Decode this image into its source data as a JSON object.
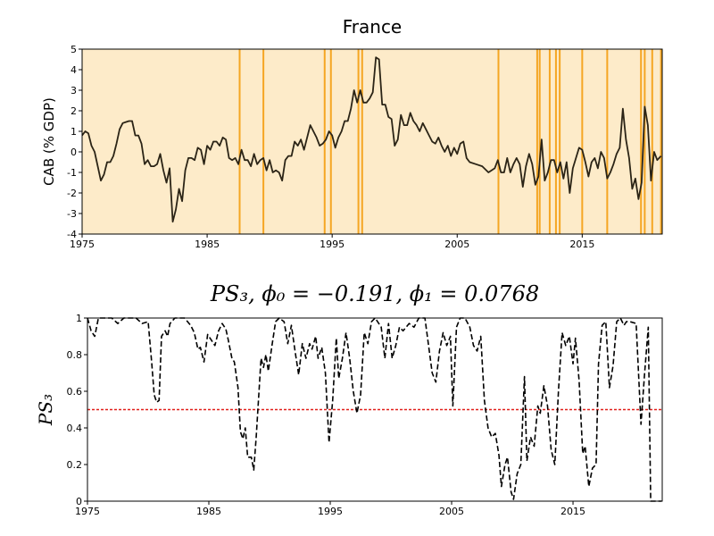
{
  "chart_data": [
    {
      "type": "line",
      "title": "France",
      "ylabel": "CAB (% GDP)",
      "xlim": [
        1975,
        2021.4
      ],
      "ylim": [
        -4,
        5
      ],
      "xticks": [
        1975,
        1985,
        1995,
        2005,
        2015
      ],
      "yticks": [
        -4,
        -3,
        -2,
        -1,
        0,
        1,
        2,
        3,
        4,
        5
      ],
      "background_color": "#fdebc9",
      "regime_color": "#f5a623",
      "regime_dates": [
        1987.6,
        1989.5,
        1994.4,
        1994.9,
        1997.1,
        1997.4,
        2008.3,
        2011.4,
        2011.6,
        2012.4,
        2012.9,
        2013.2,
        2015.0,
        2017.0,
        2019.7,
        2020.0,
        2020.6,
        2021.3
      ],
      "series": [
        {
          "color": "#2b2416",
          "x": [
            1975.0,
            1975.25,
            1975.5,
            1975.75,
            1976.0,
            1976.25,
            1976.5,
            1976.75,
            1977.0,
            1977.25,
            1977.5,
            1977.75,
            1978.0,
            1978.25,
            1978.5,
            1978.75,
            1979.0,
            1979.25,
            1979.5,
            1979.75,
            1980.0,
            1980.25,
            1980.5,
            1980.75,
            1981.0,
            1981.25,
            1981.5,
            1981.75,
            1982.0,
            1982.25,
            1982.5,
            1982.75,
            1983.0,
            1983.25,
            1983.5,
            1983.75,
            1984.0,
            1984.25,
            1984.5,
            1984.75,
            1985.0,
            1985.25,
            1985.5,
            1985.75,
            1986.0,
            1986.25,
            1986.5,
            1986.75,
            1987.0,
            1987.25,
            1987.5,
            1987.75,
            1988.0,
            1988.25,
            1988.5,
            1988.75,
            1989.0,
            1989.25,
            1989.5,
            1989.75,
            1990.0,
            1990.25,
            1990.5,
            1990.75,
            1991.0,
            1991.25,
            1991.5,
            1991.75,
            1992.0,
            1992.25,
            1992.5,
            1992.75,
            1993.0,
            1993.25,
            1993.5,
            1993.75,
            1994.0,
            1994.25,
            1994.5,
            1994.75,
            1995.0,
            1995.25,
            1995.5,
            1995.75,
            1996.0,
            1996.25,
            1996.5,
            1996.75,
            1997.0,
            1997.25,
            1997.5,
            1997.75,
            1998.0,
            1998.25,
            1998.5,
            1998.75,
            1999.0,
            1999.25,
            1999.5,
            1999.75,
            2000.0,
            2000.25,
            2000.5,
            2000.75,
            2001.0,
            2001.25,
            2001.5,
            2001.75,
            2002.0,
            2002.25,
            2002.5,
            2002.75,
            2003.0,
            2003.25,
            2003.5,
            2003.75,
            2004.0,
            2004.25,
            2004.5,
            2004.75,
            2005.0,
            2005.25,
            2005.5,
            2005.75,
            2006.0,
            2006.5,
            2007.0,
            2007.5,
            2008.0,
            2008.25,
            2008.5,
            2008.75,
            2009.0,
            2009.25,
            2009.5,
            2009.75,
            2010.0,
            2010.25,
            2010.5,
            2010.75,
            2011.0,
            2011.25,
            2011.5,
            2011.75,
            2012.0,
            2012.25,
            2012.5,
            2012.75,
            2013.0,
            2013.25,
            2013.5,
            2013.75,
            2014.0,
            2014.25,
            2014.5,
            2014.75,
            2015.0,
            2015.25,
            2015.5,
            2015.75,
            2016.0,
            2016.25,
            2016.5,
            2016.75,
            2017.0,
            2017.25,
            2017.5,
            2017.75,
            2018.0,
            2018.25,
            2018.5,
            2018.75,
            2019.0,
            2019.25,
            2019.5,
            2019.75,
            2020.0,
            2020.25,
            2020.5,
            2020.75,
            2021.0,
            2021.3
          ],
          "values": [
            0.8,
            1.0,
            0.9,
            0.3,
            0.0,
            -0.7,
            -1.4,
            -1.1,
            -0.5,
            -0.5,
            -0.2,
            0.4,
            1.1,
            1.4,
            1.45,
            1.5,
            1.5,
            0.8,
            0.8,
            0.4,
            -0.6,
            -0.4,
            -0.7,
            -0.7,
            -0.6,
            -0.1,
            -0.9,
            -1.5,
            -0.8,
            -3.4,
            -2.8,
            -1.8,
            -2.4,
            -0.9,
            -0.3,
            -0.3,
            -0.4,
            0.2,
            0.1,
            -0.6,
            0.3,
            0.1,
            0.5,
            0.5,
            0.3,
            0.7,
            0.6,
            -0.3,
            -0.4,
            -0.3,
            -0.6,
            0.1,
            -0.4,
            -0.4,
            -0.7,
            -0.1,
            -0.6,
            -0.4,
            -0.3,
            -0.9,
            -0.4,
            -1.0,
            -0.9,
            -1.0,
            -1.4,
            -0.4,
            -0.2,
            -0.2,
            0.5,
            0.3,
            0.6,
            0.1,
            0.7,
            1.3,
            1.0,
            0.7,
            0.3,
            0.4,
            0.6,
            1.0,
            0.8,
            0.2,
            0.7,
            1.0,
            1.5,
            1.5,
            2.1,
            3.0,
            2.4,
            3.0,
            2.4,
            2.4,
            2.6,
            2.9,
            4.6,
            4.5,
            2.3,
            2.3,
            1.7,
            1.6,
            0.3,
            0.6,
            1.8,
            1.3,
            1.3,
            1.9,
            1.5,
            1.3,
            1.0,
            1.4,
            1.1,
            0.8,
            0.5,
            0.4,
            0.7,
            0.3,
            0.0,
            0.3,
            -0.2,
            0.2,
            -0.1,
            0.4,
            0.5,
            -0.3,
            -0.5,
            -0.6,
            -0.7,
            -1.0,
            -0.8,
            -0.4,
            -1.0,
            -1.0,
            -0.3,
            -1.0,
            -0.6,
            -0.3,
            -0.6,
            -1.7,
            -0.7,
            -0.1,
            -0.6,
            -1.6,
            -1.2,
            0.6,
            -1.4,
            -1.0,
            -0.4,
            -0.4,
            -1.0,
            -0.5,
            -1.3,
            -0.5,
            -2.0,
            -0.8,
            -0.3,
            0.2,
            0.1,
            -0.5,
            -1.2,
            -0.5,
            -0.3,
            -0.8,
            0.0,
            -0.3,
            -1.3,
            -1.0,
            -0.6,
            -0.1,
            0.2,
            2.1,
            0.6,
            -0.3,
            -1.8,
            -1.3,
            -2.3,
            -1.5,
            2.2,
            1.3,
            -1.4,
            0.0,
            -0.4,
            -0.2
          ]
        }
      ]
    },
    {
      "type": "line",
      "title": "PS₃, ϕ₀ = −0.191, ϕ₁ = 0.0768",
      "ylabel": "PS₃",
      "xlim": [
        1975,
        2022.35
      ],
      "ylim": [
        0,
        1
      ],
      "xticks": [
        1975,
        1985,
        1995,
        2005,
        2015
      ],
      "yticks": [
        0,
        0.2,
        0.4,
        0.6,
        0.8,
        1
      ],
      "threshold": 0.5,
      "threshold_color": "#e0201b",
      "series": [
        {
          "color": "#000000",
          "x": [
            1975,
            1975.3,
            1975.6,
            1975.9,
            1977,
            1977.5,
            1978,
            1979,
            1979.5,
            1980,
            1980.3,
            1980.5,
            1980.7,
            1980.9,
            1981.1,
            1981.4,
            1981.6,
            1981.8,
            1982.2,
            1983,
            1983.5,
            1983.8,
            1984.1,
            1984.3,
            1984.6,
            1984.9,
            1985.2,
            1985.5,
            1985.8,
            1986.1,
            1986.4,
            1986.6,
            1986.9,
            1987.1,
            1987.4,
            1987.6,
            1987.8,
            1988,
            1988.2,
            1988.5,
            1988.7,
            1988.9,
            1989.3,
            1989.5,
            1989.7,
            1989.9,
            1990.2,
            1990.5,
            1990.8,
            1991.2,
            1991.5,
            1991.8,
            1992.1,
            1992.4,
            1992.7,
            1993,
            1993.3,
            1993.5,
            1993.8,
            1994,
            1994.3,
            1994.6,
            1994.9,
            1995.2,
            1995.5,
            1995.7,
            1996,
            1996.3,
            1996.6,
            1996.9,
            1997.2,
            1997.5,
            1997.8,
            1998.1,
            1998.4,
            1998.7,
            1999.2,
            1999.5,
            1999.8,
            2000.1,
            2000.4,
            2000.7,
            2001,
            2001.5,
            2001.9,
            2002.3,
            2002.8,
            2003.1,
            2003.4,
            2003.7,
            2004,
            2004.3,
            2004.6,
            2004.9,
            2005.1,
            2005.4,
            2005.7,
            2006.1,
            2006.5,
            2006.8,
            2007.1,
            2007.4,
            2007.7,
            2008,
            2008.3,
            2008.6,
            2008.9,
            2009.1,
            2009.4,
            2009.6,
            2009.9,
            2010.1,
            2010.4,
            2010.7,
            2011,
            2011.2,
            2011.5,
            2011.8,
            2012.1,
            2012.3,
            2012.6,
            2012.9,
            2013.2,
            2013.5,
            2013.8,
            2014.1,
            2014.4,
            2014.7,
            2015,
            2015.2,
            2015.5,
            2015.8,
            2016,
            2016.3,
            2016.6,
            2016.9,
            2017.1,
            2017.4,
            2017.7,
            2018,
            2018.3,
            2018.6,
            2018.9,
            2019.2,
            2019.4,
            2019.7,
            2020.2,
            2020.6,
            2020.9,
            2021.2,
            2021.4,
            2022.3
          ],
          "values": [
            1,
            0.93,
            0.9,
            1,
            1,
            0.97,
            1,
            1,
            0.97,
            0.98,
            0.75,
            0.58,
            0.54,
            0.55,
            0.9,
            0.93,
            0.9,
            0.97,
            1,
            1,
            0.96,
            0.92,
            0.83,
            0.84,
            0.76,
            0.91,
            0.88,
            0.85,
            0.93,
            0.97,
            0.94,
            0.88,
            0.78,
            0.76,
            0.62,
            0.38,
            0.34,
            0.4,
            0.24,
            0.24,
            0.17,
            0.35,
            0.78,
            0.73,
            0.8,
            0.71,
            0.85,
            0.98,
            1,
            0.98,
            0.86,
            0.96,
            0.82,
            0.69,
            0.86,
            0.78,
            0.86,
            0.83,
            0.9,
            0.78,
            0.84,
            0.7,
            0.32,
            0.55,
            0.89,
            0.67,
            0.78,
            0.92,
            0.78,
            0.6,
            0.48,
            0.58,
            0.92,
            0.86,
            0.98,
            1,
            0.95,
            0.78,
            0.97,
            0.78,
            0.85,
            0.95,
            0.93,
            0.97,
            0.95,
            1,
            1,
            0.85,
            0.7,
            0.65,
            0.82,
            0.92,
            0.85,
            0.9,
            0.52,
            0.95,
            1,
            1,
            0.95,
            0.85,
            0.82,
            0.9,
            0.55,
            0.4,
            0.35,
            0.37,
            0.25,
            0.08,
            0.2,
            0.24,
            0.05,
            0.01,
            0.15,
            0.2,
            0.68,
            0.22,
            0.35,
            0.3,
            0.52,
            0.48,
            0.63,
            0.52,
            0.28,
            0.2,
            0.6,
            0.92,
            0.85,
            0.9,
            0.75,
            0.89,
            0.66,
            0.26,
            0.3,
            0.08,
            0.18,
            0.2,
            0.75,
            0.96,
            0.98,
            0.62,
            0.74,
            0.98,
            1,
            0.96,
            0.98,
            0.98,
            0.97,
            0.42,
            0.7,
            0.95,
            0,
            0
          ]
        }
      ]
    }
  ]
}
